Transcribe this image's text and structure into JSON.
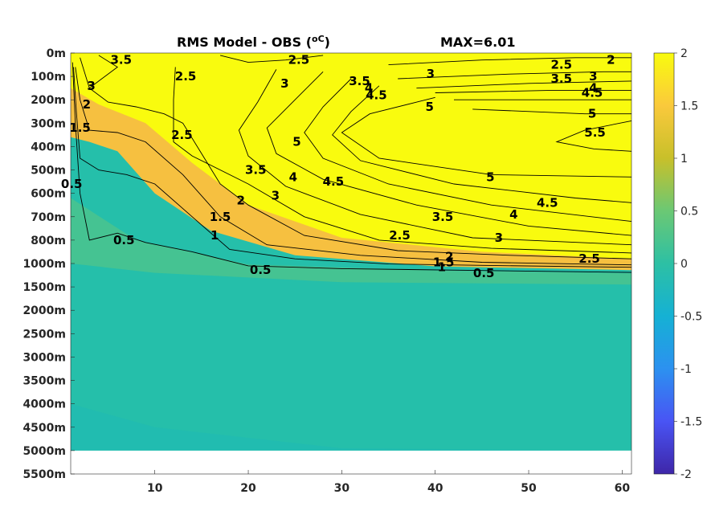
{
  "chart_data": {
    "type": "heatmap",
    "title": "RMS Model - OBS (",
    "title_unit": "oC",
    "title_close": ")",
    "max_label": "MAX=6.01",
    "xlabel": "",
    "ylabel": "",
    "x_ticks": [
      "10",
      "20",
      "30",
      "40",
      "50",
      "60"
    ],
    "x_tick_values": [
      10,
      20,
      30,
      40,
      50,
      60
    ],
    "xlim": [
      1,
      61
    ],
    "y_ticks": [
      "0m",
      "100m",
      "200m",
      "300m",
      "400m",
      "500m",
      "600m",
      "700m",
      "800m",
      "1000m",
      "1500m",
      "2000m",
      "2500m",
      "3000m",
      "3500m",
      "4000m",
      "4500m",
      "5000m",
      "5500m"
    ],
    "y_tick_values": [
      0,
      100,
      200,
      300,
      400,
      500,
      600,
      700,
      800,
      1000,
      1500,
      2000,
      2500,
      3000,
      3500,
      4000,
      4500,
      5000,
      5500
    ],
    "y_axis_note": "depth axis reversed, non-uniform spacing",
    "colorbar": {
      "range": [
        -2,
        2
      ],
      "ticks": [
        "2",
        "1.5",
        "1",
        "0.5",
        "0",
        "-0.5",
        "-1",
        "-1.5",
        "-2"
      ],
      "tick_values": [
        2,
        1.5,
        1,
        0.5,
        0,
        -0.5,
        -1,
        -1.5,
        -2
      ],
      "colormap": [
        "#3e26a8",
        "#4954f4",
        "#2c91f0",
        "#15b1d4",
        "#2dc0a4",
        "#6bc874",
        "#c8c02a",
        "#fac93c",
        "#f9fb0e"
      ]
    },
    "contour_levels": [
      0.5,
      1,
      1.5,
      2,
      2.5,
      3,
      3.5,
      4,
      4.5,
      5,
      5.5
    ],
    "contour_labels": [
      {
        "text": "3.5",
        "x": 6.4,
        "depth": 30
      },
      {
        "text": "3",
        "x": 3.2,
        "depth": 140
      },
      {
        "text": "2",
        "x": 2.7,
        "depth": 220
      },
      {
        "text": "1.5",
        "x": 2.0,
        "depth": 320
      },
      {
        "text": "0.5",
        "x": 1.1,
        "depth": 560
      },
      {
        "text": "2.5",
        "x": 13.3,
        "depth": 100
      },
      {
        "text": "2.5",
        "x": 25.4,
        "depth": 30
      },
      {
        "text": "3",
        "x": 23.9,
        "depth": 130
      },
      {
        "text": "2.5",
        "x": 12.9,
        "depth": 350
      },
      {
        "text": "3.5",
        "x": 31.9,
        "depth": 120
      },
      {
        "text": "4",
        "x": 32.9,
        "depth": 150
      },
      {
        "text": "4.5",
        "x": 33.7,
        "depth": 180
      },
      {
        "text": "3",
        "x": 39.5,
        "depth": 90
      },
      {
        "text": "5",
        "x": 39.4,
        "depth": 230
      },
      {
        "text": "5",
        "x": 25.2,
        "depth": 380
      },
      {
        "text": "2.5",
        "x": 53.5,
        "depth": 50
      },
      {
        "text": "2",
        "x": 58.8,
        "depth": 30
      },
      {
        "text": "3.5",
        "x": 53.5,
        "depth": 110
      },
      {
        "text": "3",
        "x": 56.9,
        "depth": 100
      },
      {
        "text": "4",
        "x": 56.9,
        "depth": 150
      },
      {
        "text": "4.5",
        "x": 56.8,
        "depth": 170
      },
      {
        "text": "5",
        "x": 56.8,
        "depth": 260
      },
      {
        "text": "5.5",
        "x": 57.1,
        "depth": 340
      },
      {
        "text": "3.5",
        "x": 20.8,
        "depth": 500
      },
      {
        "text": "4",
        "x": 24.8,
        "depth": 530
      },
      {
        "text": "4.5",
        "x": 29.1,
        "depth": 550
      },
      {
        "text": "5",
        "x": 45.9,
        "depth": 530
      },
      {
        "text": "3",
        "x": 22.9,
        "depth": 610
      },
      {
        "text": "2",
        "x": 19.2,
        "depth": 630
      },
      {
        "text": "4.5",
        "x": 52.0,
        "depth": 640
      },
      {
        "text": "4",
        "x": 48.4,
        "depth": 690
      },
      {
        "text": "3.5",
        "x": 40.8,
        "depth": 700
      },
      {
        "text": "1.5",
        "x": 17.0,
        "depth": 700
      },
      {
        "text": "3",
        "x": 46.8,
        "depth": 790
      },
      {
        "text": "2.5",
        "x": 36.2,
        "depth": 780
      },
      {
        "text": "1",
        "x": 16.4,
        "depth": 780
      },
      {
        "text": "0.5",
        "x": 6.7,
        "depth": 800
      },
      {
        "text": "2",
        "x": 41.5,
        "depth": 940
      },
      {
        "text": "1.5",
        "x": 40.9,
        "depth": 990
      },
      {
        "text": "2.5",
        "x": 56.5,
        "depth": 960
      },
      {
        "text": "1",
        "x": 40.7,
        "depth": 1080
      },
      {
        "text": "0.5",
        "x": 21.3,
        "depth": 1140
      },
      {
        "text": "0.5",
        "x": 45.2,
        "depth": 1210
      }
    ]
  }
}
